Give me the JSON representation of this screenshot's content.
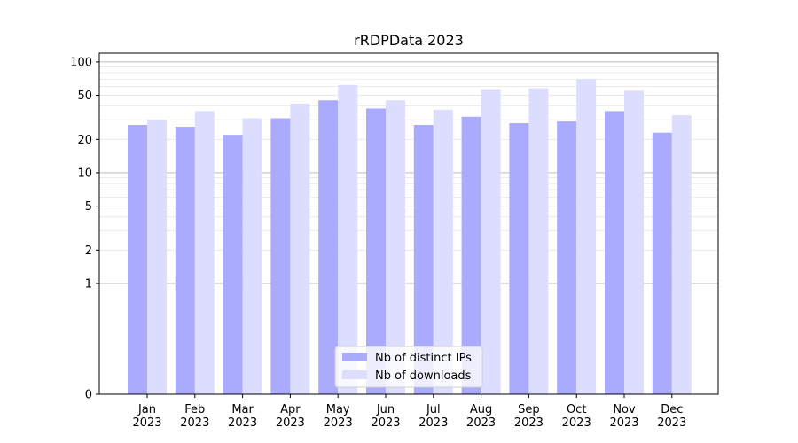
{
  "chart_data": {
    "type": "bar",
    "title": "rRDPData 2023",
    "xlabel": "",
    "ylabel": "",
    "yscale": "symlog",
    "ylim": [
      0,
      120
    ],
    "yticks": [
      0,
      1,
      2,
      5,
      10,
      20,
      50,
      100
    ],
    "grid": true,
    "legend_position": "bottom-center",
    "categories": [
      [
        "Jan",
        "2023"
      ],
      [
        "Feb",
        "2023"
      ],
      [
        "Mar",
        "2023"
      ],
      [
        "Apr",
        "2023"
      ],
      [
        "May",
        "2023"
      ],
      [
        "Jun",
        "2023"
      ],
      [
        "Jul",
        "2023"
      ],
      [
        "Aug",
        "2023"
      ],
      [
        "Sep",
        "2023"
      ],
      [
        "Oct",
        "2023"
      ],
      [
        "Nov",
        "2023"
      ],
      [
        "Dec",
        "2023"
      ]
    ],
    "series": [
      {
        "name": "Nb of distinct IPs",
        "color": "#aaaaff",
        "values": [
          27,
          26,
          22,
          31,
          45,
          38,
          27,
          32,
          28,
          29,
          36,
          23
        ]
      },
      {
        "name": "Nb of downloads",
        "color": "#ddddff",
        "values": [
          30,
          36,
          31,
          42,
          62,
          45,
          37,
          56,
          58,
          70,
          55,
          33
        ]
      }
    ]
  }
}
